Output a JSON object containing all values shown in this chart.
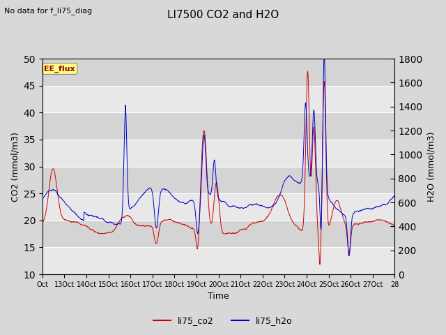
{
  "title": "LI7500 CO2 and H2O",
  "subtitle": "No data for f_li75_diag",
  "xlabel": "Time",
  "ylabel_left": "CO2 (mmol/m3)",
  "ylabel_right": "H2O (mmol/m3)",
  "ylim_left": [
    10,
    50
  ],
  "ylim_right": [
    0,
    1800
  ],
  "xtick_labels": [
    "Oct",
    "13Oct",
    "14Oct",
    "15Oct",
    "16Oct",
    "17Oct",
    "18Oct",
    "19Oct",
    "20Oct",
    "21Oct",
    "22Oct",
    "23Oct",
    "24Oct",
    "25Oct",
    "26Oct",
    "27Oct",
    "28"
  ],
  "legend_labels": [
    "li75_co2",
    "li75_h2o"
  ],
  "legend_colors": [
    "#cc0000",
    "#0000cc"
  ],
  "co2_color": "#cc0000",
  "h2o_color": "#0000cc",
  "ee_flux_box_facecolor": "#ffff88",
  "ee_flux_text_color": "#990000",
  "background_color": "#d8d8d8",
  "plot_bg_color": "#e0e0e0",
  "stripe_light": "#e8e8e8",
  "stripe_dark": "#d0d0d0",
  "figsize": [
    6.4,
    4.8
  ],
  "dpi": 100,
  "n_points": 1700,
  "seed": 42
}
